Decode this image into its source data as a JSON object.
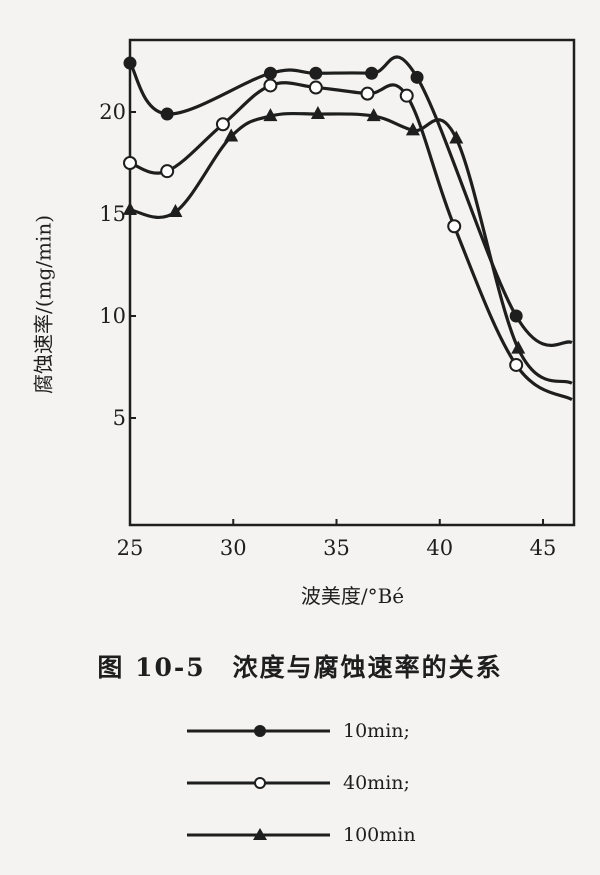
{
  "chart_data": {
    "type": "line",
    "title": "图 10-5 浓度与腐蚀速率的关系",
    "xlabel": "波美度/°Bé",
    "ylabel": "腐蚀速率/(mg/min)",
    "xlim": [
      25,
      46.5
    ],
    "ylim": [
      0,
      23
    ],
    "xticks": [
      25,
      30,
      35,
      40,
      45
    ],
    "yticks": [
      5,
      10,
      15,
      20
    ],
    "grid": false,
    "legend_position": "below",
    "series": [
      {
        "name": "10min",
        "marker": "filled-circle",
        "x": [
          25,
          26.8,
          31.8,
          34.0,
          36.7,
          38.9,
          43.7,
          46.4
        ],
        "y": [
          22.4,
          19.9,
          21.9,
          21.9,
          21.9,
          21.7,
          10.0,
          8.7
        ],
        "marker_mask": [
          true,
          true,
          true,
          true,
          true,
          true,
          true,
          false
        ]
      },
      {
        "name": "40min",
        "marker": "open-circle",
        "x": [
          25,
          26.8,
          29.5,
          31.8,
          34.0,
          36.5,
          38.4,
          40.7,
          43.7,
          46.4
        ],
        "y": [
          17.5,
          17.1,
          19.4,
          21.3,
          21.2,
          20.9,
          20.8,
          14.4,
          7.6,
          5.9
        ],
        "marker_mask": [
          true,
          true,
          true,
          true,
          true,
          true,
          true,
          true,
          true,
          false
        ]
      },
      {
        "name": "100min",
        "marker": "filled-triangle",
        "x": [
          25,
          27.2,
          29.9,
          31.8,
          34.1,
          36.8,
          38.7,
          40.8,
          43.8,
          46.4
        ],
        "y": [
          15.2,
          15.1,
          18.8,
          19.8,
          19.9,
          19.8,
          19.1,
          18.7,
          8.4,
          6.7
        ],
        "marker_mask": [
          true,
          true,
          true,
          true,
          true,
          true,
          true,
          true,
          true,
          false
        ]
      }
    ]
  },
  "figure": {
    "caption": "图 10-5　浓度与腐蚀速率的关系",
    "xlabel": "波美度/°Bé",
    "ylabel": "腐蚀速率/(mg/min)",
    "legend": [
      {
        "label": "10min;",
        "marker": "filled-circle"
      },
      {
        "label": "40min;",
        "marker": "open-circle"
      },
      {
        "label": "100min",
        "marker": "filled-triangle"
      }
    ]
  }
}
